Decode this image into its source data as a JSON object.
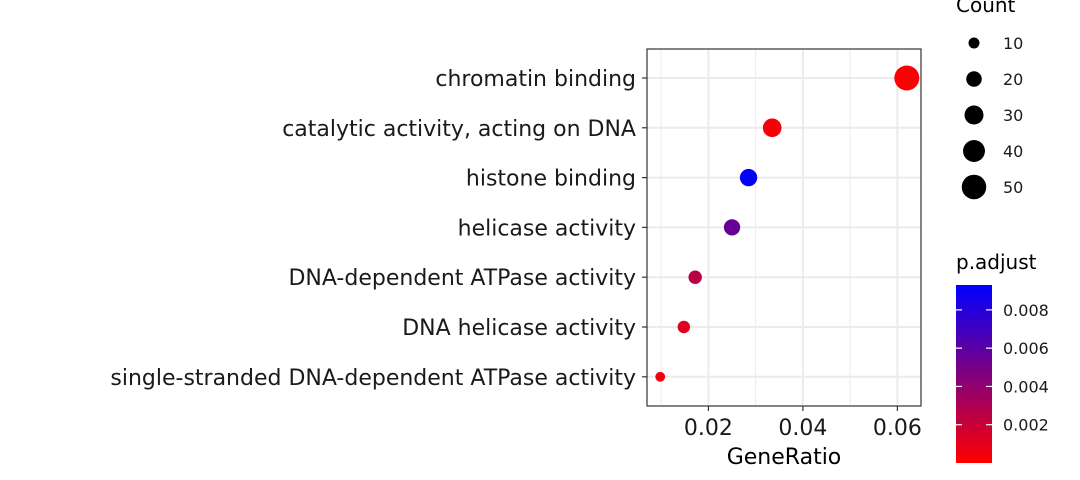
{
  "chart_data": {
    "type": "scatter",
    "title": "",
    "xlabel": "GeneRatio",
    "ylabel": "",
    "xlim": [
      0.007,
      0.065
    ],
    "x_ticks": [
      {
        "value": 0.02,
        "label": "0.02"
      },
      {
        "value": 0.04,
        "label": "0.04"
      },
      {
        "value": 0.06,
        "label": "0.06"
      }
    ],
    "grid": true,
    "categories": [
      "chromatin binding",
      "catalytic activity, acting on DNA",
      "histone binding",
      "helicase activity",
      "DNA-dependent ATPase activity",
      "DNA helicase activity",
      "single-stranded DNA-dependent ATPase activity"
    ],
    "points": [
      {
        "category": "chromatin binding",
        "gene_ratio": 0.062,
        "count": 52,
        "p_adjust": 0.0001
      },
      {
        "category": "catalytic activity, acting on DNA",
        "gene_ratio": 0.0335,
        "count": 29,
        "p_adjust": 0.0003
      },
      {
        "category": "histone binding",
        "gene_ratio": 0.0285,
        "count": 25,
        "p_adjust": 0.0092
      },
      {
        "category": "helicase activity",
        "gene_ratio": 0.025,
        "count": 22,
        "p_adjust": 0.0055
      },
      {
        "category": "DNA-dependent ATPase activity",
        "gene_ratio": 0.0172,
        "count": 15,
        "p_adjust": 0.0025
      },
      {
        "category": "DNA helicase activity",
        "gene_ratio": 0.0148,
        "count": 13,
        "p_adjust": 0.0012
      },
      {
        "category": "single-stranded DNA-dependent ATPase activity",
        "gene_ratio": 0.0098,
        "count": 8,
        "p_adjust": 0.0005
      }
    ],
    "size_legend": {
      "title": "Count",
      "entries": [
        10,
        20,
        30,
        40,
        50
      ]
    },
    "color_legend": {
      "title": "p.adjust",
      "low_color": "#ff0000",
      "high_color": "#0000ff",
      "range": [
        0.0,
        0.0093
      ],
      "ticks": [
        {
          "value": 0.002,
          "label": "0.002"
        },
        {
          "value": 0.004,
          "label": "0.004"
        },
        {
          "value": 0.006,
          "label": "0.006"
        },
        {
          "value": 0.008,
          "label": "0.008"
        }
      ]
    },
    "legend_position": "right"
  }
}
